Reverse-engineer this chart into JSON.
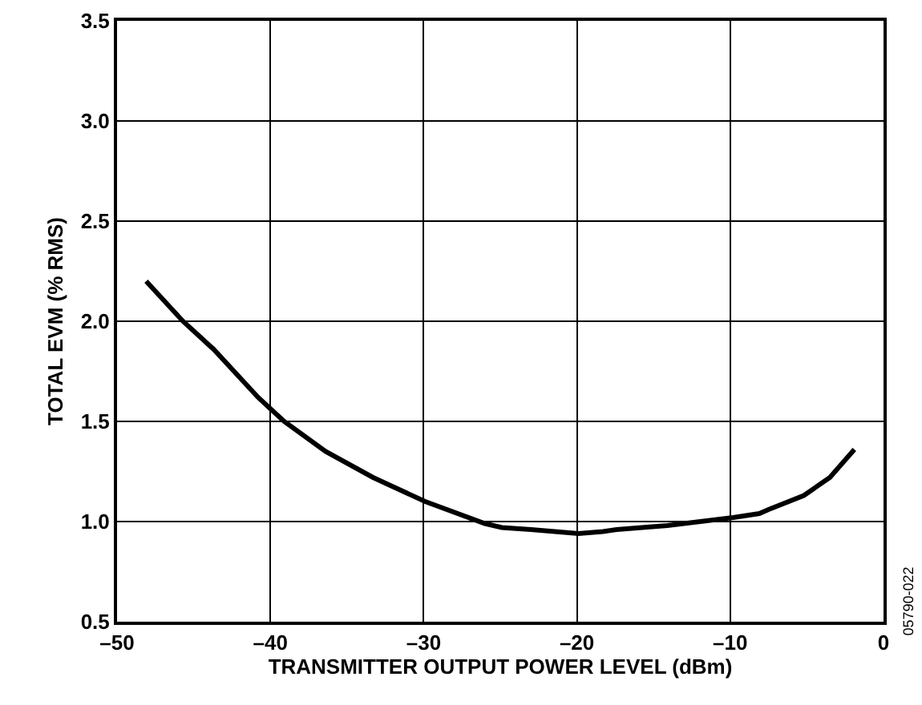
{
  "chart_data": {
    "type": "line",
    "xlabel": "TRANSMITTER OUTPUT POWER LEVEL (dBm)",
    "ylabel": "TOTAL EVM (% RMS)",
    "annotations": [
      "05790-022"
    ],
    "x": [
      -48.1,
      -45.7,
      -43.7,
      -40.8,
      -39.1,
      -36.4,
      -33.3,
      -29.9,
      -26,
      -24.9,
      -23,
      -19.9,
      -18.3,
      -17.4,
      -14.1,
      -9.8,
      -8.1,
      -7.5,
      -5.2,
      -3.5,
      -1.9
    ],
    "series": [
      {
        "color": "#000000",
        "values": [
          2.2,
          2.0,
          1.86,
          1.62,
          1.5,
          1.35,
          1.22,
          1.1,
          0.99,
          0.97,
          0.96,
          0.94,
          0.95,
          0.96,
          0.98,
          1.02,
          1.04,
          1.06,
          1.13,
          1.22,
          1.36
        ]
      }
    ],
    "xlim": [
      -50,
      0
    ],
    "xticks": [
      {
        "value": -50,
        "label": "–50"
      },
      {
        "value": -40,
        "label": "–40"
      },
      {
        "value": -30,
        "label": "–30"
      },
      {
        "value": -20,
        "label": "–20"
      },
      {
        "value": -10,
        "label": "–10"
      },
      0
    ],
    "ylim": [
      0.5,
      3.5
    ],
    "yticks": [
      {
        "value": 0.5,
        "label": "0.5"
      },
      {
        "value": 1,
        "label": "1.0"
      },
      {
        "value": 1.5,
        "label": "1.5"
      },
      {
        "value": 2,
        "label": "2.0"
      },
      {
        "value": 2.5,
        "label": "2.5"
      },
      {
        "value": 3,
        "label": "3.0"
      },
      {
        "value": 3.5,
        "label": "3.5"
      }
    ],
    "grid": true,
    "marker": "none",
    "line_style": "solid"
  }
}
